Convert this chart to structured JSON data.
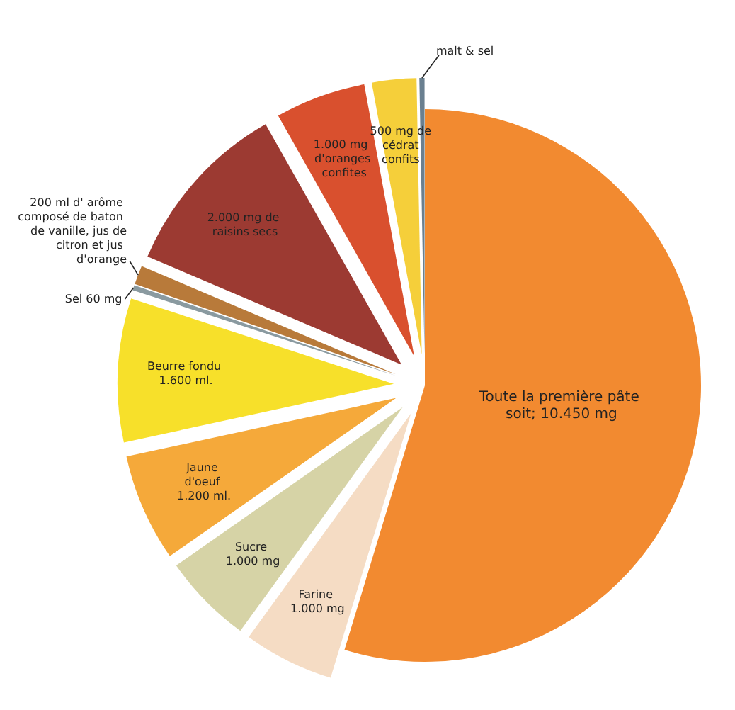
{
  "chart_data": {
    "type": "pie",
    "categories": [
      "Toute la première pâte soit; 10.450 mg",
      "Farine 1.000 mg",
      "Sucre 1.000 mg",
      "Jaune d'oeuf 1.200 ml.",
      "Beurre fondu 1.600 ml.",
      "Sel 60 mg",
      "200 ml d' arôme composé de baton de vanille, jus de citron et jus d'orange",
      "2.000 mg de raisins secs",
      "1.000 mg d'oranges confites",
      "500 mg de cédrat confits",
      "malt & sel"
    ],
    "values": [
      54.7,
      5.3,
      5.3,
      6.3,
      8.4,
      0.3,
      1.1,
      10.4,
      5.3,
      2.6,
      0.3
    ],
    "colors": [
      "#f28a30",
      "#f5dcc4",
      "#d6d3a6",
      "#f5a93a",
      "#f7e02a",
      "#8a9aa0",
      "#b87a3a",
      "#9c3a32",
      "#d9502e",
      "#f5cf3a",
      "#6a8090"
    ],
    "legend": false
  }
}
